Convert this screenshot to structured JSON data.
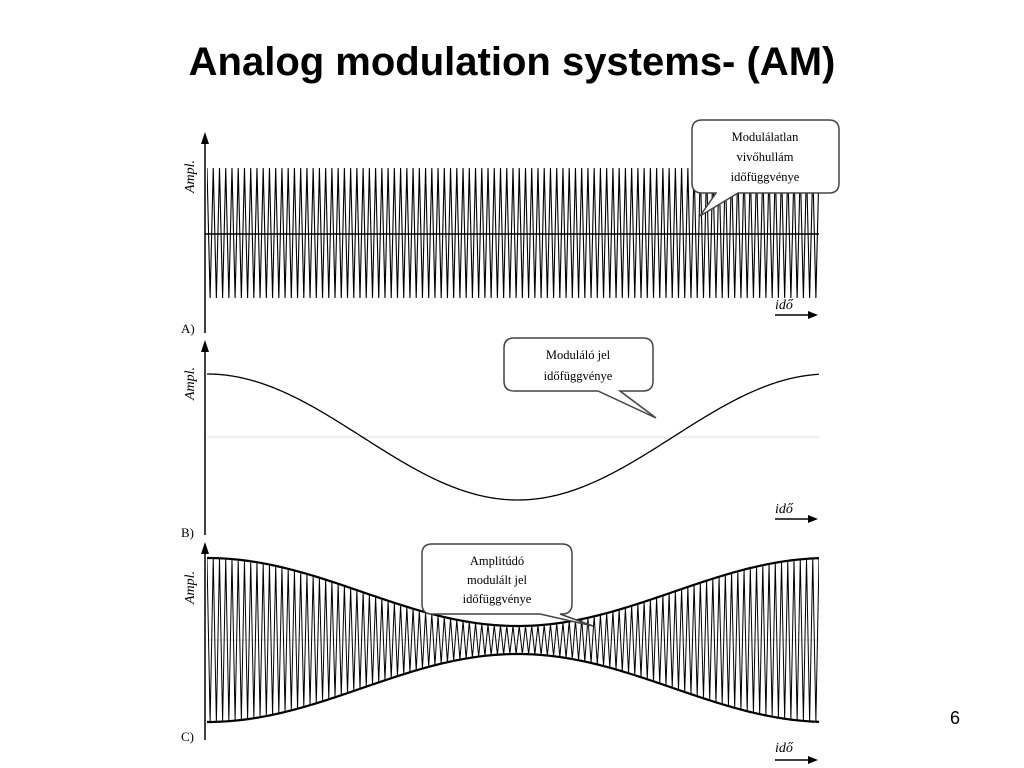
{
  "slide": {
    "title": "Analog modulation systems- (AM)",
    "page_number": "6"
  },
  "panels": [
    {
      "id": "A",
      "panel_label": "A)",
      "y_axis_label": "Ampl.",
      "x_axis_label": "idő",
      "callout_lines": [
        "Modulálatlan",
        "vivőhullám",
        "időfüggvénye"
      ]
    },
    {
      "id": "B",
      "panel_label": "B)",
      "y_axis_label": "Ampl.",
      "x_axis_label": "idő",
      "callout_lines": [
        "Moduláló jel",
        "időfüggvénye"
      ]
    },
    {
      "id": "C",
      "panel_label": "C)",
      "y_axis_label": "Ampl.",
      "x_axis_label": "idő",
      "callout_lines": [
        "Amplitúdó",
        "modulált jel",
        "időfüggvénye"
      ]
    }
  ],
  "colors": {
    "ink": "#000000",
    "callout_border": "#444444",
    "callout_fill": "#ffffff",
    "faint_baseline": "#dddddd"
  }
}
